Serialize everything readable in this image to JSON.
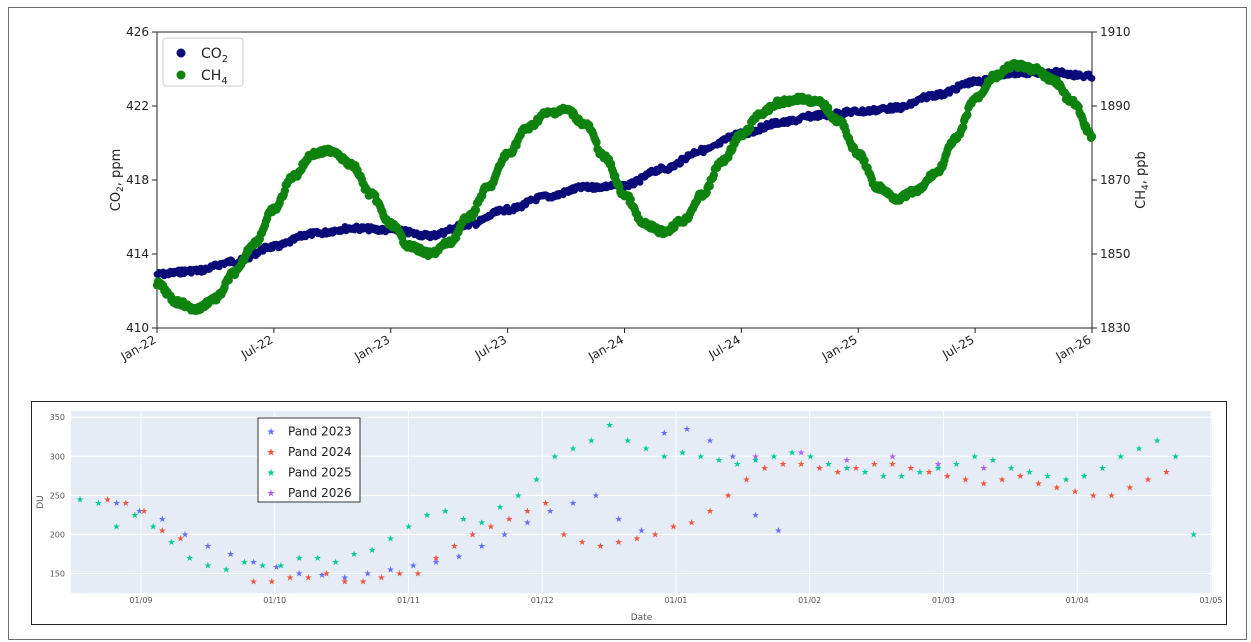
{
  "charts": {
    "co2_ch4": {
      "left_axis_label": "CO",
      "left_axis_sub": "2",
      "left_axis_unit": ", ppm",
      "right_axis_label": "CH",
      "right_axis_sub": "4",
      "right_axis_unit": ", ppb",
      "legend": [
        {
          "name": "CO",
          "sub": "2",
          "color": "#0a0a78"
        },
        {
          "name": "CH",
          "sub": "4",
          "color": "#0e820e"
        }
      ]
    },
    "ozone": {
      "xlabel": "Date",
      "ylabel": "DU",
      "legend": [
        "Pand 2023",
        "Pand 2024",
        "Pand 2025",
        "Pand 2026"
      ]
    }
  },
  "chart_data": [
    {
      "type": "scatter",
      "x_ticks": [
        "Jan-22",
        "Jul-22",
        "Jan-23",
        "Jul-23",
        "Jan-24",
        "Jul-24",
        "Jan-25",
        "Jul-25",
        "Jan-26"
      ],
      "x_range": [
        "2022-01",
        "2026-01"
      ],
      "left_yticks": [
        410,
        414,
        418,
        422,
        426
      ],
      "right_yticks": [
        1830,
        1850,
        1870,
        1890,
        1910
      ],
      "ylim_left": [
        410,
        426
      ],
      "ylim_right": [
        1830,
        1910
      ],
      "legend_position": "top-left",
      "series": [
        {
          "name": "CO2",
          "axis": "left",
          "color": "#0a0a78",
          "x": [
            "2022-01",
            "2022-03",
            "2022-05",
            "2022-07",
            "2022-09",
            "2022-11",
            "2023-01",
            "2023-03",
            "2023-05",
            "2023-07",
            "2023-09",
            "2023-11",
            "2024-01",
            "2024-03",
            "2024-05",
            "2024-07",
            "2024-09",
            "2024-11",
            "2025-01",
            "2025-03",
            "2025-05",
            "2025-07",
            "2025-09",
            "2025-11",
            "2026-01"
          ],
          "y": [
            412.9,
            413.1,
            413.6,
            414.4,
            415.1,
            415.4,
            415.3,
            415.0,
            415.6,
            416.4,
            417.1,
            417.6,
            417.7,
            418.6,
            419.6,
            420.5,
            421.1,
            421.5,
            421.7,
            421.9,
            422.6,
            423.3,
            423.8,
            423.8,
            423.6
          ]
        },
        {
          "name": "CH4",
          "axis": "right",
          "color": "#0e820e",
          "x": [
            "2022-01",
            "2022-02",
            "2022-03",
            "2022-04",
            "2022-05",
            "2022-06",
            "2022-07",
            "2022-08",
            "2022-09",
            "2022-10",
            "2022-11",
            "2022-12",
            "2023-01",
            "2023-02",
            "2023-03",
            "2023-04",
            "2023-05",
            "2023-06",
            "2023-07",
            "2023-08",
            "2023-09",
            "2023-10",
            "2023-11",
            "2023-12",
            "2024-01",
            "2024-02",
            "2024-03",
            "2024-04",
            "2024-05",
            "2024-06",
            "2024-07",
            "2024-08",
            "2024-09",
            "2024-10",
            "2024-11",
            "2024-12",
            "2025-01",
            "2025-02",
            "2025-03",
            "2025-04",
            "2025-05",
            "2025-06",
            "2025-07",
            "2025-08",
            "2025-09",
            "2025-10",
            "2025-11",
            "2025-12",
            "2026-01"
          ],
          "y": [
            1842,
            1837,
            1835,
            1838,
            1845,
            1853,
            1862,
            1871,
            1877,
            1878,
            1874,
            1866,
            1858,
            1852,
            1850,
            1853,
            1860,
            1868,
            1877,
            1884,
            1888,
            1889,
            1885,
            1876,
            1866,
            1858,
            1856,
            1859,
            1866,
            1875,
            1882,
            1888,
            1891,
            1892,
            1891,
            1886,
            1877,
            1868,
            1865,
            1867,
            1872,
            1881,
            1892,
            1898,
            1901,
            1900,
            1897,
            1891,
            1882
          ]
        }
      ]
    },
    {
      "type": "scatter",
      "xlabel": "Date",
      "ylabel": "DU",
      "x_ticks": [
        "01/09",
        "01/10",
        "01/11",
        "01/12",
        "01/01",
        "01/02",
        "01/03",
        "01/04",
        "01/05"
      ],
      "y_ticks": [
        150,
        200,
        250,
        300,
        350
      ],
      "ylim": [
        125,
        358
      ],
      "legend_position": "top-left",
      "series": [
        {
          "name": "Pand 2023",
          "color": "#636efa",
          "x": [
            10,
            15,
            20,
            25,
            30,
            35,
            40,
            45,
            50,
            55,
            60,
            65,
            70,
            75,
            80,
            85,
            90,
            95,
            100,
            105,
            110,
            115,
            120,
            125,
            130,
            135,
            140,
            145,
            150,
            155
          ],
          "y": [
            240,
            230,
            220,
            200,
            185,
            175,
            165,
            158,
            150,
            148,
            145,
            150,
            155,
            160,
            165,
            172,
            185,
            200,
            215,
            230,
            240,
            250,
            220,
            205,
            330,
            335,
            320,
            300,
            225,
            205
          ]
        },
        {
          "name": "Pand 2024",
          "color": "#ef553b",
          "x": [
            8,
            12,
            16,
            20,
            24,
            40,
            44,
            48,
            52,
            56,
            60,
            64,
            68,
            72,
            76,
            80,
            84,
            88,
            92,
            96,
            100,
            104,
            108,
            112,
            116,
            120,
            124,
            128,
            132,
            136,
            140,
            144,
            148,
            152,
            156,
            160,
            164,
            168,
            172,
            176,
            180,
            184,
            188,
            192,
            196,
            200,
            204,
            208,
            212,
            216,
            220,
            224,
            228,
            232,
            236,
            240
          ],
          "y": [
            245,
            240,
            230,
            205,
            195,
            140,
            140,
            145,
            145,
            150,
            140,
            140,
            145,
            150,
            150,
            170,
            185,
            200,
            210,
            220,
            230,
            240,
            200,
            190,
            185,
            190,
            195,
            200,
            210,
            215,
            230,
            250,
            270,
            285,
            290,
            290,
            285,
            280,
            285,
            290,
            290,
            285,
            280,
            275,
            270,
            265,
            270,
            275,
            265,
            260,
            255,
            250,
            250,
            260,
            270,
            280
          ]
        },
        {
          "name": "Pand 2025",
          "color": "#00cc96",
          "x": [
            2,
            6,
            10,
            14,
            18,
            22,
            26,
            30,
            34,
            38,
            42,
            46,
            50,
            54,
            58,
            62,
            66,
            70,
            74,
            78,
            82,
            86,
            90,
            94,
            98,
            102,
            106,
            110,
            114,
            118,
            122,
            126,
            130,
            134,
            138,
            142,
            146,
            150,
            154,
            158,
            162,
            166,
            170,
            174,
            178,
            182,
            186,
            190,
            194,
            198,
            202,
            206,
            210,
            214,
            218,
            222,
            226,
            230,
            234,
            238,
            242,
            246
          ],
          "y": [
            245,
            240,
            210,
            225,
            210,
            190,
            170,
            160,
            155,
            165,
            160,
            160,
            170,
            170,
            165,
            175,
            180,
            195,
            210,
            225,
            230,
            220,
            215,
            235,
            250,
            270,
            300,
            310,
            320,
            340,
            320,
            310,
            300,
            305,
            300,
            295,
            290,
            295,
            300,
            305,
            300,
            290,
            285,
            280,
            275,
            275,
            280,
            285,
            290,
            300,
            295,
            285,
            280,
            275,
            270,
            275,
            285,
            300,
            310,
            320,
            300,
            200
          ]
        },
        {
          "name": "Pand 2026",
          "color": "#ab63fa",
          "x": [
            150,
            160,
            170,
            180,
            190,
            200
          ],
          "y": [
            300,
            305,
            295,
            300,
            290,
            285
          ]
        }
      ]
    }
  ]
}
